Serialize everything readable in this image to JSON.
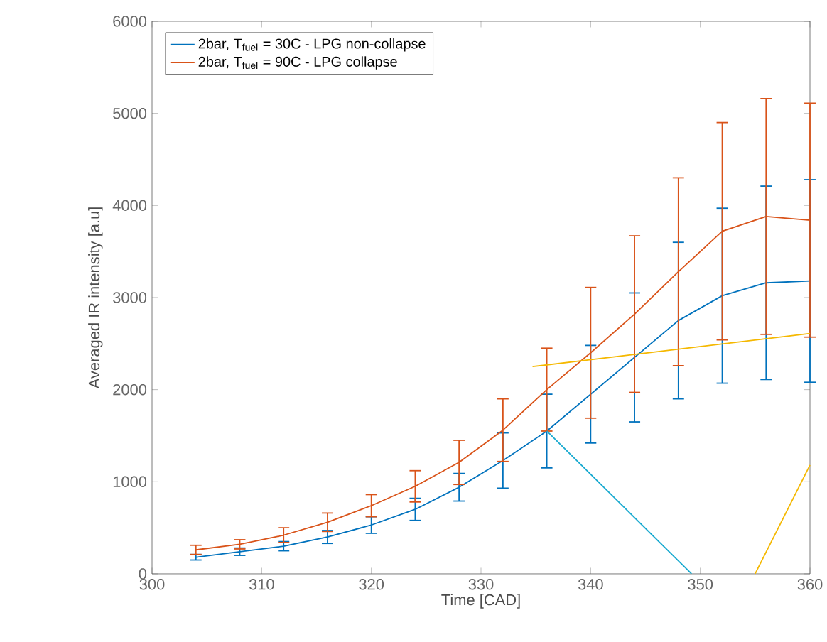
{
  "chart_data": {
    "type": "line",
    "xlabel": "Time [CAD]",
    "ylabel": "Averaged IR intensity [a.u]",
    "x": [
      304,
      308,
      312,
      316,
      320,
      324,
      328,
      332,
      336,
      340,
      344,
      348,
      352,
      356,
      360
    ],
    "series": [
      {
        "name": "2bar, T$_{fuel}$ = 30C - LPG non-collapse",
        "color": "#0072bd",
        "values": [
          180,
          240,
          300,
          400,
          530,
          700,
          940,
          1230,
          1550,
          1950,
          2350,
          2750,
          3020,
          3160,
          3180
        ],
        "errors": [
          30,
          40,
          50,
          70,
          90,
          120,
          150,
          300,
          400,
          530,
          700,
          850,
          950,
          1050,
          1100
        ]
      },
      {
        "name": "2bar, T$_{fuel}$ = 90C - LPG collapse",
        "color": "#d95319",
        "values": [
          260,
          320,
          420,
          560,
          740,
          950,
          1210,
          1560,
          2000,
          2400,
          2820,
          3280,
          3720,
          3880,
          3840
        ],
        "errors": [
          50,
          50,
          80,
          100,
          120,
          170,
          240,
          340,
          450,
          710,
          850,
          1020,
          1180,
          1280,
          1270
        ]
      },
      {
        "type": "line",
        "color": "#f5b800",
        "x": [
          334.7,
          360
        ],
        "values": [
          2250,
          2610
        ]
      },
      {
        "type": "line",
        "color": "#17a9cf",
        "x": [
          336,
          349.2
        ],
        "values": [
          1550,
          0
        ]
      },
      {
        "type": "line",
        "color": "#f5b800",
        "x": [
          355,
          360
        ],
        "values": [
          0,
          1180
        ]
      }
    ],
    "xlim": [
      300,
      360
    ],
    "ylim": [
      0,
      6000
    ],
    "xticks": [
      300,
      310,
      320,
      330,
      340,
      350,
      360
    ],
    "yticks": [
      0,
      1000,
      2000,
      3000,
      4000,
      5000,
      6000
    ],
    "legend": "top left"
  }
}
